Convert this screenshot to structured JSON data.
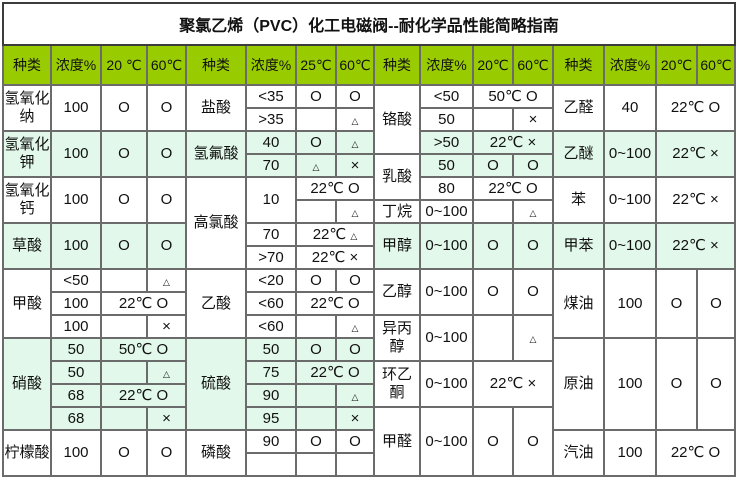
{
  "title": "聚氯乙烯（PVC）化工电磁阀--耐化学品性能简略指南",
  "colors": {
    "header_bg": "#99CC00",
    "highlight_row_bg": "#E1F8EA",
    "grid_border": "#6b6b6b",
    "outer_border": "#3c3c3c"
  },
  "symbols": {
    "good": "O",
    "limited": "△",
    "not_resistant": "×"
  },
  "table": {
    "header": [
      "种类",
      "浓度%",
      "20 ℃",
      "60℃",
      "种类",
      "浓度%",
      "25℃",
      "60℃",
      "种类",
      "浓度%",
      "20℃",
      "60℃",
      "种类",
      "浓度%",
      "20℃",
      "60℃"
    ],
    "rows": [
      [
        {
          "t": "氢氧化纳",
          "k": "sp",
          "rs": 2
        },
        {
          "t": "100",
          "k": "c",
          "rs": 2
        },
        {
          "t": "O",
          "rs": 2
        },
        {
          "t": "O",
          "rs": 2
        },
        {
          "t": "盐酸",
          "k": "sp",
          "rs": 2
        },
        {
          "t": "<35",
          "k": "c"
        },
        {
          "t": "O"
        },
        {
          "t": "O"
        },
        {
          "t": "铬酸",
          "k": "sp",
          "rs": 3
        },
        {
          "t": "<50",
          "k": "c"
        },
        {
          "t": "50℃ O",
          "cs": 2
        },
        {
          "t": "乙醛",
          "k": "sp",
          "rs": 2
        },
        {
          "t": "40",
          "k": "c",
          "rs": 2
        },
        {
          "t": "22℃ O",
          "cs": 2,
          "rs": 2
        }
      ],
      [
        {
          "t": ">35",
          "k": "c"
        },
        {
          "t": ""
        },
        {
          "t": "△"
        },
        {
          "t": "50",
          "k": "c"
        },
        {
          "t": ""
        },
        {
          "t": "×"
        }
      ],
      [
        {
          "t": "氢氧化钾",
          "k": "sp",
          "rs": 2,
          "g": 1
        },
        {
          "t": "100",
          "k": "c",
          "rs": 2,
          "g": 1
        },
        {
          "t": "O",
          "rs": 2,
          "g": 1
        },
        {
          "t": "O",
          "rs": 2,
          "g": 1
        },
        {
          "t": "氢氟酸",
          "k": "sp",
          "rs": 2,
          "g": 1
        },
        {
          "t": "40",
          "k": "c",
          "g": 1
        },
        {
          "t": "O",
          "g": 1
        },
        {
          "t": "△",
          "g": 1
        },
        {
          "t": ">50",
          "k": "c",
          "g": 1
        },
        {
          "t": "22℃ ×",
          "cs": 2,
          "g": 1
        },
        {
          "t": "乙醚",
          "k": "sp",
          "rs": 2,
          "g": 1
        },
        {
          "t": "0~100",
          "k": "c",
          "rs": 2,
          "g": 1
        },
        {
          "t": "22℃ ×",
          "cs": 2,
          "rs": 2,
          "g": 1
        }
      ],
      [
        {
          "t": "70",
          "k": "c",
          "g": 1
        },
        {
          "t": "△",
          "g": 1
        },
        {
          "t": "×",
          "g": 1
        },
        {
          "t": "乳酸",
          "k": "sp",
          "rs": 2
        },
        {
          "t": "50",
          "k": "c",
          "g": 1
        },
        {
          "t": "O",
          "g": 1
        },
        {
          "t": "O",
          "g": 1
        }
      ],
      [
        {
          "t": "氢氧化钙",
          "k": "sp",
          "rs": 2
        },
        {
          "t": "100",
          "k": "c",
          "rs": 2
        },
        {
          "t": "O",
          "rs": 2
        },
        {
          "t": "O",
          "rs": 2
        },
        {
          "t": "高氯酸",
          "k": "sp",
          "rs": 4
        },
        {
          "t": "10",
          "k": "c",
          "rs": 2
        },
        {
          "t": "22℃ O",
          "cs": 2
        },
        {
          "t": "80",
          "k": "c"
        },
        {
          "t": "22℃ O",
          "cs": 2
        },
        {
          "t": "苯",
          "k": "sp",
          "rs": 2
        },
        {
          "t": "0~100",
          "k": "c",
          "rs": 2
        },
        {
          "t": "22℃ ×",
          "cs": 2,
          "rs": 2
        }
      ],
      [
        {
          "t": ""
        },
        {
          "t": "△"
        },
        {
          "t": "丁烷",
          "k": "sp"
        },
        {
          "t": "0~100",
          "k": "c"
        },
        {
          "t": ""
        },
        {
          "t": "△"
        }
      ],
      [
        {
          "t": "草酸",
          "k": "sp",
          "rs": 2,
          "g": 1
        },
        {
          "t": "100",
          "k": "c",
          "rs": 2,
          "g": 1
        },
        {
          "t": "O",
          "rs": 2,
          "g": 1
        },
        {
          "t": "O",
          "rs": 2,
          "g": 1
        },
        {
          "t": "70",
          "k": "c"
        },
        {
          "t": "22℃ △",
          "cs": 2
        },
        {
          "t": "甲醇",
          "k": "sp",
          "rs": 2,
          "g": 1
        },
        {
          "t": "0~100",
          "k": "c",
          "rs": 2,
          "g": 1
        },
        {
          "t": "O",
          "rs": 2,
          "g": 1
        },
        {
          "t": "O",
          "rs": 2,
          "g": 1
        },
        {
          "t": "甲苯",
          "k": "sp",
          "rs": 2,
          "g": 1
        },
        {
          "t": "0~100",
          "k": "c",
          "rs": 2,
          "g": 1
        },
        {
          "t": "22℃ ×",
          "cs": 2,
          "rs": 2,
          "g": 1
        }
      ],
      [
        {
          "t": ">70",
          "k": "c"
        },
        {
          "t": "22℃ ×",
          "cs": 2
        }
      ],
      [
        {
          "t": "甲酸",
          "k": "sp",
          "rs": 3
        },
        {
          "t": "<50",
          "k": "c"
        },
        {
          "t": ""
        },
        {
          "t": "△"
        },
        {
          "t": "乙酸",
          "k": "sp",
          "rs": 3
        },
        {
          "t": "<20",
          "k": "c"
        },
        {
          "t": "O"
        },
        {
          "t": "O"
        },
        {
          "t": "乙醇",
          "k": "sp",
          "rs": 2
        },
        {
          "t": "0~100",
          "k": "c",
          "rs": 2
        },
        {
          "t": "O",
          "rs": 2
        },
        {
          "t": "O",
          "rs": 2
        },
        {
          "t": "煤油",
          "k": "sp",
          "rs": 3
        },
        {
          "t": "100",
          "k": "c",
          "rs": 3
        },
        {
          "t": "O",
          "rs": 3
        },
        {
          "t": "O",
          "rs": 3
        }
      ],
      [
        {
          "t": "100",
          "k": "c"
        },
        {
          "t": "22℃ O",
          "cs": 2
        },
        {
          "t": "<60",
          "k": "c"
        },
        {
          "t": "22℃ O",
          "cs": 2
        }
      ],
      [
        {
          "t": "100",
          "k": "c"
        },
        {
          "t": ""
        },
        {
          "t": "×"
        },
        {
          "t": "<60",
          "k": "c"
        },
        {
          "t": ""
        },
        {
          "t": "△"
        },
        {
          "t": "异丙醇",
          "k": "sp",
          "rs": 2
        },
        {
          "t": "0~100",
          "k": "c",
          "rs": 2
        },
        {
          "t": "",
          "rs": 2
        },
        {
          "t": "△",
          "rs": 2
        }
      ],
      [
        {
          "t": "硝酸",
          "k": "sp",
          "rs": 4,
          "g": 1
        },
        {
          "t": "50",
          "k": "c",
          "g": 1
        },
        {
          "t": "50℃ O",
          "cs": 2,
          "g": 1
        },
        {
          "t": "硫酸",
          "k": "sp",
          "rs": 4,
          "g": 1
        },
        {
          "t": "50",
          "k": "c",
          "g": 1
        },
        {
          "t": "O",
          "g": 1
        },
        {
          "t": "O",
          "g": 1
        },
        {
          "t": "原油",
          "k": "sp",
          "rs": 4
        },
        {
          "t": "100",
          "k": "c",
          "rs": 4
        },
        {
          "t": "O",
          "rs": 4
        },
        {
          "t": "O",
          "rs": 4
        }
      ],
      [
        {
          "t": "50",
          "k": "c",
          "g": 1
        },
        {
          "t": "",
          "g": 1
        },
        {
          "t": "△",
          "g": 1
        },
        {
          "t": "75",
          "k": "c",
          "g": 1
        },
        {
          "t": "22℃ O",
          "cs": 2,
          "g": 1
        },
        {
          "t": "环乙酮",
          "k": "sp",
          "rs": 2
        },
        {
          "t": "0~100",
          "k": "c",
          "rs": 2
        },
        {
          "t": "22℃ ×",
          "cs": 2,
          "rs": 2
        }
      ],
      [
        {
          "t": "68",
          "k": "c",
          "g": 1
        },
        {
          "t": "22℃ O",
          "cs": 2,
          "g": 1
        },
        {
          "t": "90",
          "k": "c",
          "g": 1
        },
        {
          "t": "",
          "g": 1
        },
        {
          "t": "△",
          "g": 1
        }
      ],
      [
        {
          "t": "68",
          "k": "c",
          "g": 1
        },
        {
          "t": "",
          "g": 1
        },
        {
          "t": "×",
          "g": 1
        },
        {
          "t": "95",
          "k": "c",
          "g": 1
        },
        {
          "t": "",
          "g": 1
        },
        {
          "t": "×",
          "g": 1
        },
        {
          "t": "甲醛",
          "k": "sp",
          "rs": 3
        },
        {
          "t": "0~100",
          "k": "c",
          "rs": 3
        },
        {
          "t": "O",
          "rs": 3
        },
        {
          "t": "O",
          "rs": 3
        }
      ],
      [
        {
          "t": "柠檬酸",
          "k": "sp",
          "rs": 2
        },
        {
          "t": "100",
          "k": "c",
          "rs": 2
        },
        {
          "t": "O",
          "rs": 2
        },
        {
          "t": "O",
          "rs": 2
        },
        {
          "t": "磷酸",
          "k": "sp",
          "rs": 2
        },
        {
          "t": "90",
          "k": "c"
        },
        {
          "t": "O"
        },
        {
          "t": "O"
        },
        {
          "t": "汽油",
          "k": "sp",
          "rs": 2
        },
        {
          "t": "100",
          "k": "c",
          "rs": 2
        },
        {
          "t": "22℃ O",
          "cs": 2,
          "rs": 2
        }
      ],
      [
        {
          "t": "",
          "k": "c"
        },
        {
          "t": ""
        },
        {
          "t": ""
        }
      ]
    ]
  }
}
